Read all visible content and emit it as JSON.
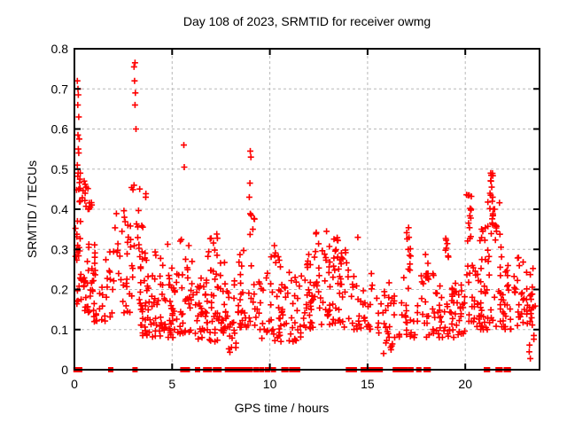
{
  "title": "Day 108 of 2023, SRMTID for receiver owmg",
  "colors": {
    "marker": "#ff0000",
    "grid": "#b8b8b8",
    "frame": "#000000",
    "background": "#ffffff",
    "text": "#000000"
  },
  "chart_data": {
    "type": "scatter",
    "marker": "plus",
    "series_name": "SRMTID",
    "series_color": "#ff0000",
    "title": "Day 108 of 2023, SRMTID for receiver owmg",
    "xlabel": "GPS time / hours",
    "ylabel": "SRMTID / TECUs",
    "xlim": [
      0,
      23.8
    ],
    "ylim": [
      0,
      0.8
    ],
    "x_ticks": {
      "values": [
        0,
        5,
        10,
        15,
        20
      ],
      "labels": [
        "0",
        "5",
        "10",
        "15",
        "20"
      ]
    },
    "y_ticks": {
      "values": [
        0,
        0.1,
        0.2,
        0.3,
        0.4,
        0.5,
        0.6,
        0.7,
        0.8
      ],
      "labels": [
        "0",
        "0.1",
        "0.2",
        "0.3",
        "0.4",
        "0.5",
        "0.6",
        "0.7",
        "0.8"
      ]
    },
    "grid": true,
    "legend": "none",
    "notable_points": [
      [
        0.15,
        0.72
      ],
      [
        0.18,
        0.7
      ],
      [
        0.2,
        0.685
      ],
      [
        0.17,
        0.66
      ],
      [
        0.22,
        0.63
      ],
      [
        0.18,
        0.585
      ],
      [
        0.25,
        0.575
      ],
      [
        0.2,
        0.55
      ],
      [
        0.22,
        0.54
      ],
      [
        0.15,
        0.51
      ],
      [
        0.3,
        0.49
      ],
      [
        0.28,
        0.475
      ],
      [
        0.5,
        0.47
      ],
      [
        0.6,
        0.455
      ],
      [
        0.55,
        0.44
      ],
      [
        3.05,
        0.755
      ],
      [
        3.1,
        0.765
      ],
      [
        3.08,
        0.72
      ],
      [
        3.12,
        0.69
      ],
      [
        3.1,
        0.66
      ],
      [
        3.15,
        0.6
      ],
      [
        3.05,
        0.46
      ],
      [
        5.6,
        0.56
      ],
      [
        5.62,
        0.505
      ],
      [
        9.0,
        0.545
      ],
      [
        9.03,
        0.53
      ],
      [
        8.98,
        0.465
      ],
      [
        8.95,
        0.43
      ],
      [
        9.05,
        0.385
      ],
      [
        12.9,
        0.345
      ],
      [
        14.5,
        0.33
      ],
      [
        17.1,
        0.354
      ],
      [
        17.12,
        0.33
      ],
      [
        17.08,
        0.3
      ],
      [
        17.15,
        0.285
      ],
      [
        19.0,
        0.327
      ],
      [
        19.03,
        0.303
      ],
      [
        20.15,
        0.435
      ],
      [
        20.2,
        0.435
      ],
      [
        20.25,
        0.402
      ],
      [
        20.3,
        0.4
      ],
      [
        20.22,
        0.354
      ],
      [
        20.28,
        0.332
      ],
      [
        21.3,
        0.49
      ],
      [
        21.32,
        0.47
      ],
      [
        21.35,
        0.455
      ],
      [
        21.3,
        0.435
      ],
      [
        21.4,
        0.43
      ],
      [
        21.38,
        0.42
      ],
      [
        21.45,
        0.4
      ],
      [
        21.5,
        0.4
      ],
      [
        21.42,
        0.385
      ],
      [
        21.55,
        0.36
      ],
      [
        21.6,
        0.345
      ],
      [
        20.9,
        0.345
      ]
    ],
    "density_clusters": [
      {
        "h": [
          0.05,
          0.35
        ],
        "v": [
          0.28,
          0.5
        ],
        "n": 22,
        "bias": 1.3
      },
      {
        "h": [
          0.05,
          0.35
        ],
        "v": [
          0.15,
          0.28
        ],
        "n": 10,
        "bias": 1.0
      },
      {
        "h": [
          0.3,
          0.9
        ],
        "v": [
          0.4,
          0.48
        ],
        "n": 12,
        "bias": 1.0
      },
      {
        "h": [
          0.35,
          1.1
        ],
        "v": [
          0.14,
          0.33
        ],
        "n": 35,
        "bias": 1.4
      },
      {
        "h": [
          1.0,
          2.1
        ],
        "v": [
          0.12,
          0.3
        ],
        "n": 28,
        "bias": 1.5
      },
      {
        "h": [
          2.0,
          2.9
        ],
        "v": [
          0.28,
          0.4
        ],
        "n": 18,
        "bias": 1.0
      },
      {
        "h": [
          2.1,
          3.0
        ],
        "v": [
          0.14,
          0.28
        ],
        "n": 16,
        "bias": 1.2
      },
      {
        "h": [
          2.9,
          3.35
        ],
        "v": [
          0.3,
          0.47
        ],
        "n": 10,
        "bias": 1.0
      },
      {
        "h": [
          3.3,
          5.2
        ],
        "v": [
          0.08,
          0.24
        ],
        "n": 90,
        "bias": 1.6
      },
      {
        "h": [
          3.35,
          3.7
        ],
        "v": [
          0.24,
          0.44
        ],
        "n": 12,
        "bias": 1.3
      },
      {
        "h": [
          4.0,
          5.2
        ],
        "v": [
          0.24,
          0.32
        ],
        "n": 6,
        "bias": 1.0
      },
      {
        "h": [
          5.2,
          6.3
        ],
        "v": [
          0.09,
          0.25
        ],
        "n": 35,
        "bias": 1.4
      },
      {
        "h": [
          5.4,
          6.1
        ],
        "v": [
          0.25,
          0.33
        ],
        "n": 6,
        "bias": 1.0
      },
      {
        "h": [
          6.3,
          8.25
        ],
        "v": [
          0.07,
          0.24
        ],
        "n": 85,
        "bias": 1.4
      },
      {
        "h": [
          6.8,
          7.7
        ],
        "v": [
          0.24,
          0.34
        ],
        "n": 14,
        "bias": 1.2
      },
      {
        "h": [
          7.9,
          8.3
        ],
        "v": [
          0.02,
          0.08
        ],
        "n": 6,
        "bias": 1.0
      },
      {
        "h": [
          8.3,
          9.5
        ],
        "v": [
          0.1,
          0.3
        ],
        "n": 40,
        "bias": 1.4
      },
      {
        "h": [
          8.9,
          9.25
        ],
        "v": [
          0.3,
          0.4
        ],
        "n": 6,
        "bias": 1.0
      },
      {
        "h": [
          9.5,
          11.8
        ],
        "v": [
          0.07,
          0.26
        ],
        "n": 70,
        "bias": 1.5
      },
      {
        "h": [
          10.05,
          10.5
        ],
        "v": [
          0.26,
          0.32
        ],
        "n": 7,
        "bias": 1.0
      },
      {
        "h": [
          11.8,
          14.2
        ],
        "v": [
          0.1,
          0.3
        ],
        "n": 95,
        "bias": 1.45
      },
      {
        "h": [
          12.3,
          13.6
        ],
        "v": [
          0.28,
          0.345
        ],
        "n": 10,
        "bias": 1.0
      },
      {
        "h": [
          14.2,
          15.3
        ],
        "v": [
          0.1,
          0.24
        ],
        "n": 30,
        "bias": 1.4
      },
      {
        "h": [
          15.3,
          16.8
        ],
        "v": [
          0.04,
          0.2
        ],
        "n": 26,
        "bias": 1.2
      },
      {
        "h": [
          15.85,
          16.35
        ],
        "v": [
          0.05,
          0.22
        ],
        "n": 12,
        "bias": 1.0
      },
      {
        "h": [
          16.85,
          18.45
        ],
        "v": [
          0.08,
          0.25
        ],
        "n": 45,
        "bias": 1.4
      },
      {
        "h": [
          16.95,
          17.25
        ],
        "v": [
          0.25,
          0.36
        ],
        "n": 6,
        "bias": 1.0
      },
      {
        "h": [
          17.9,
          18.15
        ],
        "v": [
          0.22,
          0.3
        ],
        "n": 5,
        "bias": 1.0
      },
      {
        "h": [
          18.45,
          20.0
        ],
        "v": [
          0.08,
          0.22
        ],
        "n": 60,
        "bias": 1.4
      },
      {
        "h": [
          18.9,
          19.15
        ],
        "v": [
          0.27,
          0.335
        ],
        "n": 5,
        "bias": 1.0
      },
      {
        "h": [
          20.0,
          21.0
        ],
        "v": [
          0.1,
          0.26
        ],
        "n": 40,
        "bias": 1.3
      },
      {
        "h": [
          20.05,
          20.35
        ],
        "v": [
          0.32,
          0.44
        ],
        "n": 8,
        "bias": 1.0
      },
      {
        "h": [
          20.7,
          21.9
        ],
        "v": [
          0.26,
          0.36
        ],
        "n": 18,
        "bias": 1.0
      },
      {
        "h": [
          21.1,
          21.75
        ],
        "v": [
          0.36,
          0.49
        ],
        "n": 13,
        "bias": 1.0
      },
      {
        "h": [
          21.0,
          22.4
        ],
        "v": [
          0.1,
          0.26
        ],
        "n": 45,
        "bias": 1.4
      },
      {
        "h": [
          22.4,
          23.5
        ],
        "v": [
          0.11,
          0.28
        ],
        "n": 40,
        "bias": 1.3
      },
      {
        "h": [
          23.25,
          23.6
        ],
        "v": [
          0.02,
          0.18
        ],
        "n": 10,
        "bias": 1.0
      }
    ],
    "zero_marker_hours": [
      0.08,
      0.14,
      0.2,
      0.27,
      1.86,
      3.1,
      5.55,
      5.65,
      5.78,
      6.3,
      6.72,
      6.9,
      7.22,
      7.4,
      7.83,
      8.05,
      8.15,
      8.25,
      8.35,
      8.45,
      8.52,
      8.6,
      8.68,
      8.76,
      8.84,
      8.92,
      9.0,
      9.3,
      9.58,
      9.88,
      10.18,
      10.72,
      10.82,
      11.12,
      11.25,
      11.42,
      14.02,
      14.18,
      14.32,
      14.78,
      15.02,
      15.18,
      15.42,
      15.65,
      16.42,
      16.58,
      16.78,
      16.95,
      17.22,
      17.62,
      18.0,
      18.1,
      21.08,
      21.14,
      21.68,
      21.78,
      22.1,
      22.2
    ]
  }
}
